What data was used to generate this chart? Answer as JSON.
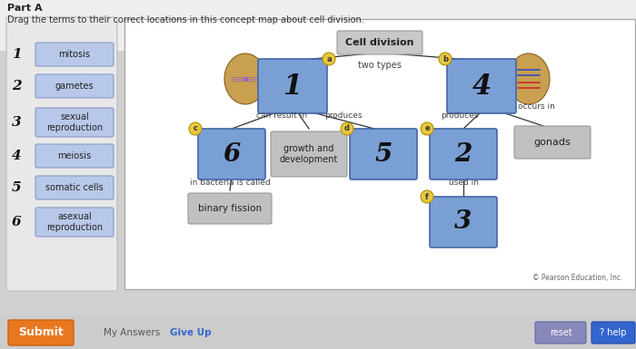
{
  "title_part": "Part A",
  "subtitle": "Drag the terms to their correct locations in this concept map about cell division.",
  "sidebar_items": [
    {
      "num": "1",
      "label": "mitosis"
    },
    {
      "num": "2",
      "label": "gametes"
    },
    {
      "num": "3",
      "label": "sexual\nreproduction"
    },
    {
      "num": "4",
      "label": "meiosis"
    },
    {
      "num": "5",
      "label": "somatic cells"
    },
    {
      "num": "6",
      "label": "asexual\nreproduction"
    }
  ],
  "sidebar_box_color": "#b8c8e8",
  "copyright": "© Pearson Education, Inc.",
  "arrow_color": "#222222",
  "circle_color": "#e8c840",
  "blue_box_color": "#7a9fd4",
  "gray_box_color": "#c0c0c0",
  "submit_color": "#e87820",
  "submit_text": "Submit",
  "myanswers_text": "My Answers",
  "giveup_text": "Give Up",
  "reset_text": "reset",
  "help_text": "? help"
}
